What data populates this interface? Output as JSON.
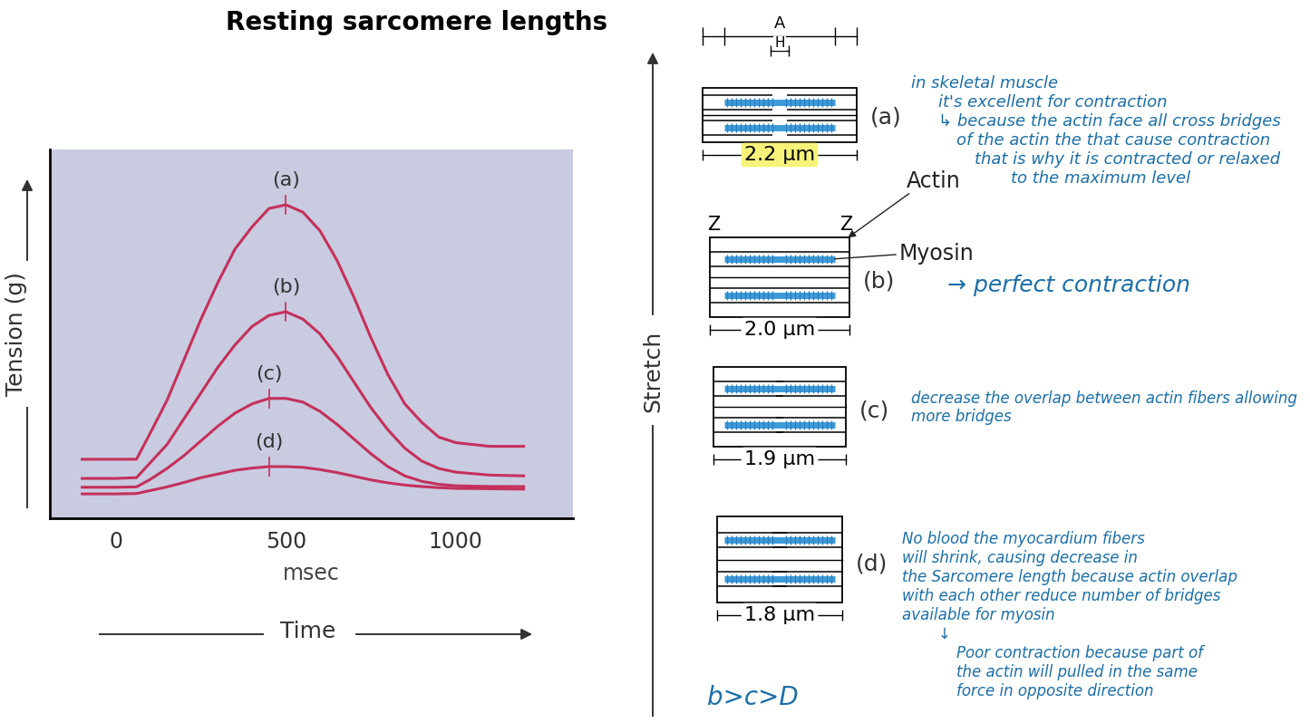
{
  "chart_data": {
    "type": "line",
    "title": "Resting sarcomere lengths",
    "x_label": "msec",
    "x_arrow_label": "Time",
    "y_label": "Tension (g)",
    "x": [
      -100,
      0,
      60,
      100,
      150,
      200,
      250,
      300,
      350,
      400,
      450,
      500,
      550,
      600,
      650,
      700,
      750,
      800,
      850,
      900,
      950,
      1000,
      1100,
      1200
    ],
    "series": [
      {
        "name": "(a)",
        "color": "#c4305c",
        "values": [
          1.6,
          1.6,
          1.6,
          2.3,
          3.2,
          4.3,
          5.4,
          6.4,
          7.3,
          7.9,
          8.4,
          8.5,
          8.3,
          7.8,
          7.0,
          6.0,
          4.9,
          3.9,
          3.1,
          2.6,
          2.2,
          2.05,
          1.95,
          1.95
        ]
      },
      {
        "name": "(b)",
        "color": "#c4305c",
        "values": [
          1.08,
          1.08,
          1.1,
          1.5,
          2.0,
          2.7,
          3.4,
          4.1,
          4.7,
          5.2,
          5.5,
          5.6,
          5.4,
          5.0,
          4.4,
          3.7,
          3.0,
          2.4,
          1.9,
          1.55,
          1.35,
          1.25,
          1.17,
          1.15
        ]
      },
      {
        "name": "(c)",
        "color": "#c4305c",
        "values": [
          0.84,
          0.84,
          0.85,
          1.05,
          1.35,
          1.7,
          2.1,
          2.5,
          2.85,
          3.1,
          3.25,
          3.25,
          3.15,
          2.9,
          2.55,
          2.15,
          1.75,
          1.4,
          1.15,
          1.0,
          0.92,
          0.88,
          0.86,
          0.86
        ]
      },
      {
        "name": "(d)",
        "color": "#c4305c",
        "values": [
          0.66,
          0.66,
          0.67,
          0.75,
          0.85,
          0.97,
          1.1,
          1.2,
          1.3,
          1.36,
          1.4,
          1.4,
          1.38,
          1.32,
          1.24,
          1.14,
          1.04,
          0.96,
          0.9,
          0.86,
          0.83,
          0.81,
          0.8,
          0.79
        ]
      }
    ],
    "xlim": [
      -195,
      1345
    ],
    "xticks": [
      0,
      500,
      1000
    ],
    "ylim": [
      0,
      10
    ],
    "yticks": [],
    "tick_labels": "x"
  },
  "diagram": {
    "axis_label": "Stretch",
    "bands": [
      "A",
      "H"
    ],
    "actin_label": "Actin",
    "myosin_label": "Myosin",
    "z_label": "Z",
    "sarcomeres": [
      {
        "label": "(a)",
        "length": 2.2,
        "unit": "μm",
        "note": [
          "in skeletal muscle",
          "it's excellent for contraction",
          "↳ because the actin face all cross bridges",
          "of the actin the that cause contraction",
          "that is why it is contracted or relaxed",
          "to the maximum level"
        ]
      },
      {
        "label": "(b)",
        "length": 2.0,
        "unit": "μm",
        "note": [
          "→ perfect contraction"
        ]
      },
      {
        "label": "(c)",
        "length": 1.9,
        "unit": "μm",
        "note": [
          "decrease the overlap between actin fibers allowing",
          "more bridges"
        ]
      },
      {
        "label": "(d)",
        "length": 1.8,
        "unit": "μm",
        "note": [
          "No blood the myocardium fibers",
          "will shrink, causing decrease in",
          "the Sarcomere length because actin overlap",
          "with each other reduce number of bridges",
          "available for myosin",
          "↓",
          "Poor contraction because part of",
          "the actin will pulled in the same",
          "force in opposite direction"
        ]
      }
    ],
    "conclusion": "b>c>D"
  }
}
